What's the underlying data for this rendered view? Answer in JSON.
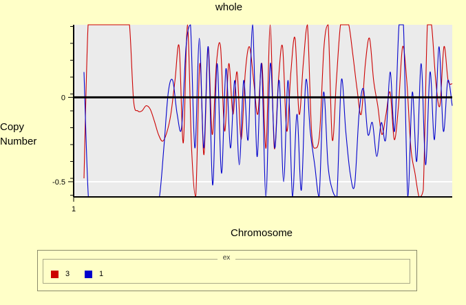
{
  "chart_data": {
    "type": "line",
    "title": "whole",
    "xlabel": "Chromosome",
    "ylabel": "Copy Number",
    "x_ticks": [
      "1"
    ],
    "y_ticks": [
      {
        "value": 0,
        "label": "0"
      },
      {
        "value": -0.5,
        "label": "-0.5"
      }
    ],
    "ylim": [
      -0.59,
      0.43
    ],
    "grid": true,
    "legend_title": "ex",
    "legend_position": "bottom",
    "series": [
      {
        "name": "3",
        "color": "#cc0000",
        "values": [
          -0.48,
          0.43,
          0.43,
          0.43,
          0.43,
          0.43,
          0.43,
          0.43,
          0.43,
          0.43,
          0.43,
          0.43,
          -0.02,
          -0.08,
          -0.08,
          -0.05,
          -0.07,
          -0.14,
          -0.22,
          -0.26,
          -0.21,
          -0.1,
          0.1,
          0.3,
          -0.27,
          0.43,
          -0.3,
          -0.59,
          0.2,
          -0.34,
          0.3,
          -0.22,
          0.2,
          0.3,
          -0.2,
          0.2,
          -0.1,
          0.15,
          -0.25,
          0.15,
          0.3,
          0.1,
          -0.1,
          0.2,
          -0.3,
          0.43,
          -0.3,
          0.1,
          0.3,
          -0.2,
          0.15,
          0.35,
          -0.1,
          0.2,
          0.43,
          -0.2,
          -0.3,
          -0.2,
          0.3,
          0.43,
          -0.25,
          0.1,
          0.43,
          0.43,
          0.43,
          0.25,
          0.05,
          -0.1,
          0.2,
          0.35,
          0.1,
          -0.05,
          -0.22,
          -0.1,
          0.03,
          -0.25,
          -0.05,
          0.3,
          0.1,
          -0.3,
          -0.45,
          -0.59,
          -0.55,
          0.43,
          0.43,
          0.1,
          -0.05,
          0.3,
          0.1,
          0.08
        ],
        "color_name": "red"
      },
      {
        "name": "1",
        "color": "#0000cc",
        "values": [
          0.15,
          -0.59,
          -0.59,
          -0.59,
          -0.59,
          -0.59,
          -0.59,
          -0.59,
          -0.59,
          -0.59,
          -0.59,
          -0.59,
          -0.59,
          -0.59,
          -0.59,
          -0.59,
          -0.59,
          -0.59,
          -0.3,
          0.03,
          0.1,
          -0.1,
          -0.18,
          0.3,
          0.43,
          -0.3,
          0.35,
          -0.3,
          0.3,
          -0.52,
          0.2,
          -0.45,
          0.17,
          -0.3,
          0.1,
          -0.4,
          0.1,
          -0.25,
          0.43,
          -0.35,
          0.2,
          -0.59,
          0.2,
          -0.3,
          0.1,
          -0.5,
          0.1,
          -0.59,
          -0.1,
          -0.55,
          0.1,
          -0.2,
          -0.4,
          -0.59,
          0.03,
          -0.4,
          -0.55,
          -0.59,
          0.1,
          -0.2,
          -0.45,
          -0.52,
          -0.1,
          0.05,
          -0.22,
          -0.15,
          -0.35,
          -0.15,
          -0.25,
          0.15,
          -0.2,
          0.43,
          0.43,
          -0.59,
          0.03,
          -0.38,
          0.2,
          -0.4,
          0.15,
          -0.25,
          0.3,
          -0.2,
          0.1,
          -0.05
        ]
      }
    ]
  }
}
